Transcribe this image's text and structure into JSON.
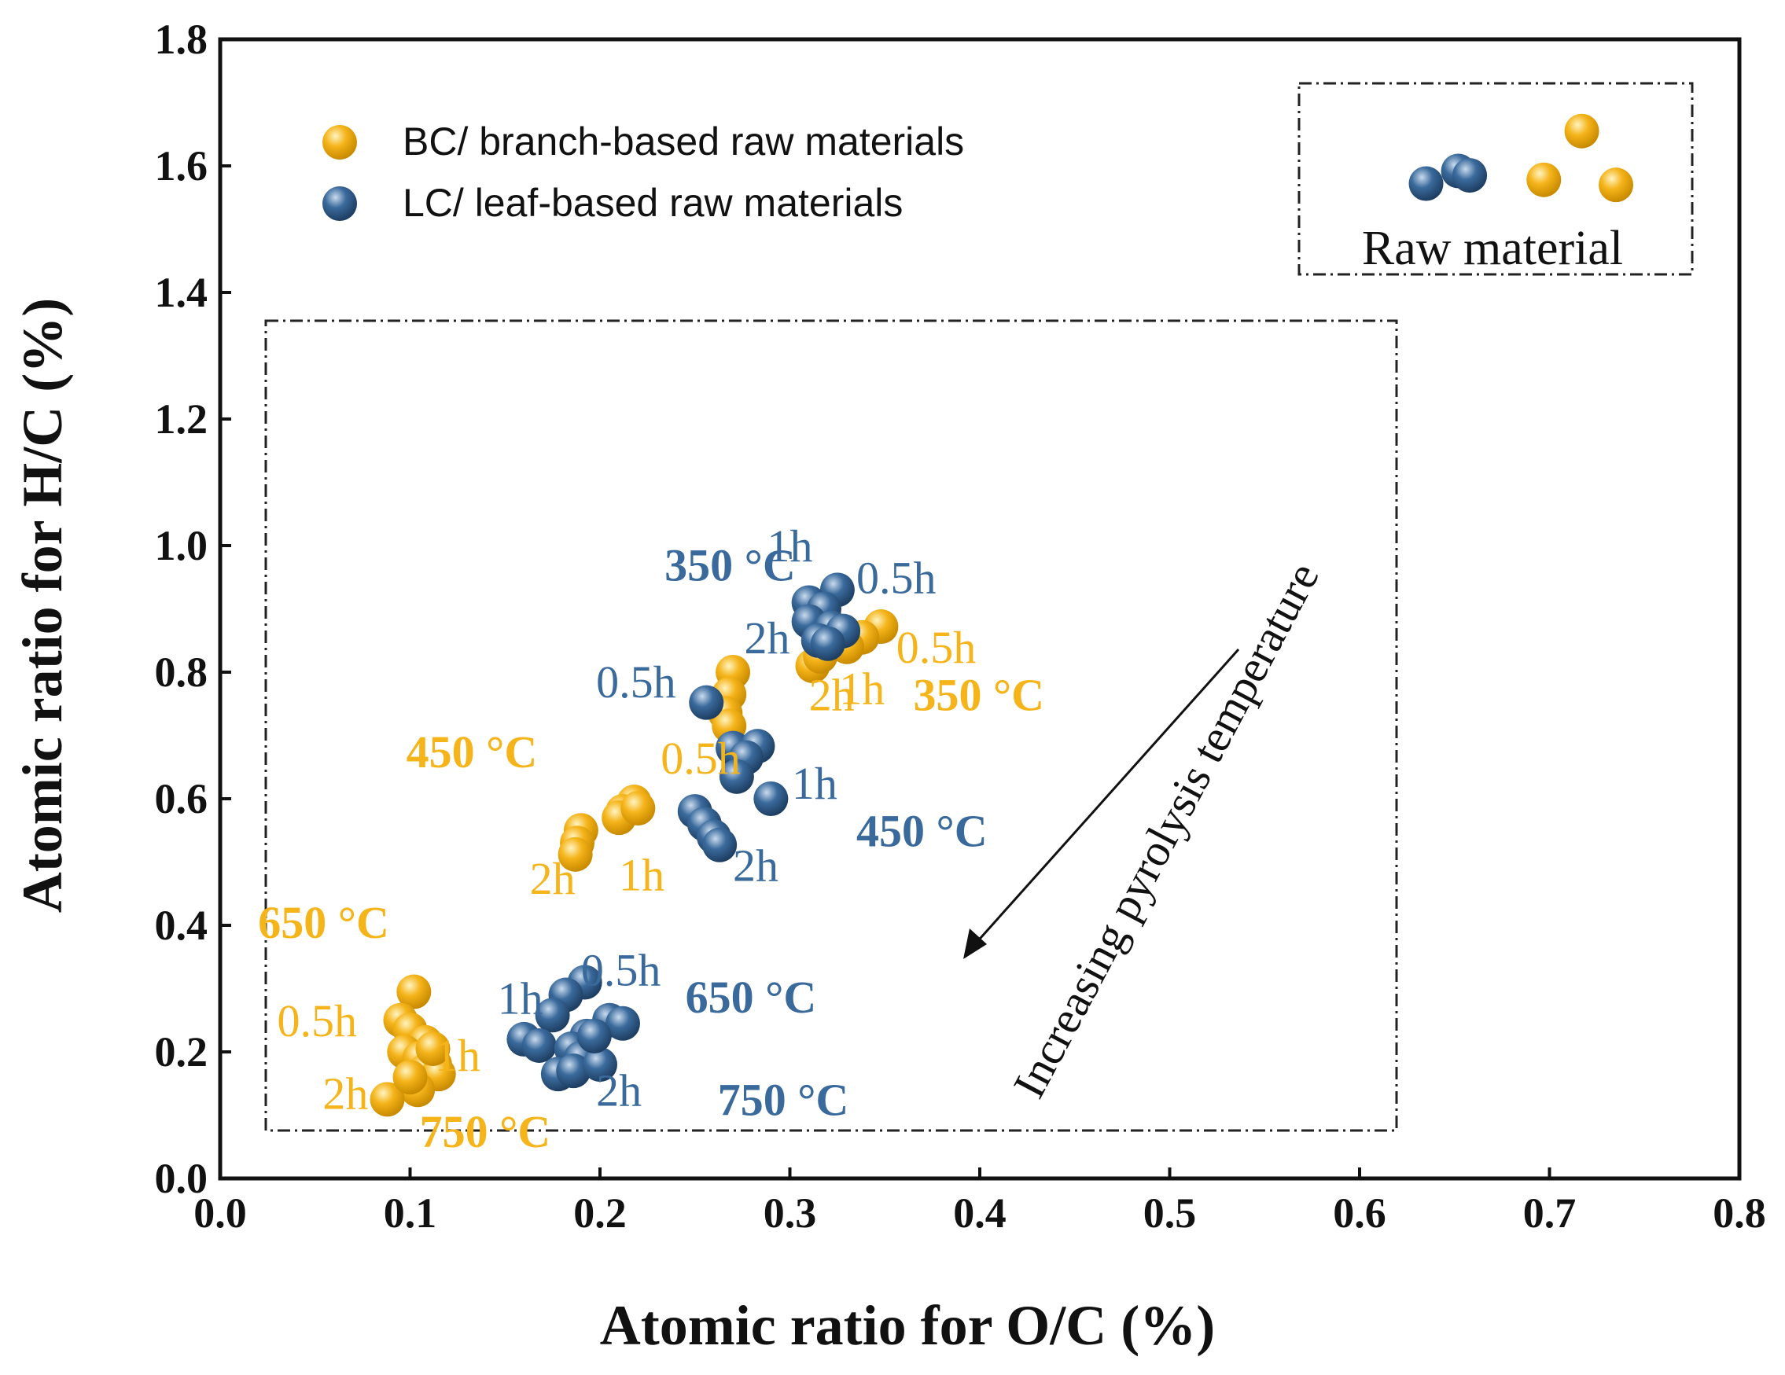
{
  "chart_data": {
    "type": "scatter",
    "title": "",
    "xlabel": "Atomic ratio for O/C (%)",
    "ylabel": "Atomic ratio for H/C (%)",
    "xlim": [
      0.0,
      0.8
    ],
    "ylim": [
      0.0,
      1.8
    ],
    "x_ticks": [
      "0.0",
      "0.1",
      "0.2",
      "0.3",
      "0.4",
      "0.5",
      "0.6",
      "0.7",
      "0.8"
    ],
    "y_ticks": [
      "0.0",
      "0.2",
      "0.4",
      "0.6",
      "0.8",
      "1.0",
      "1.2",
      "1.4",
      "1.6",
      "1.8"
    ],
    "colors": {
      "BC": "#F5B41A",
      "LC": "#3A6A9C"
    },
    "legend": [
      {
        "key": "BC",
        "label": "BC/ branch-based raw materials"
      },
      {
        "key": "LC",
        "label": "LC/ leaf-based raw materials"
      }
    ],
    "series": [
      {
        "name": "BC/ branch-based raw materials",
        "key": "BC",
        "points": [
          [
            0.717,
            1.655
          ],
          [
            0.697,
            1.578
          ],
          [
            0.735,
            1.57
          ],
          [
            0.348,
            0.872
          ],
          [
            0.338,
            0.855
          ],
          [
            0.33,
            0.84
          ],
          [
            0.312,
            0.81
          ],
          [
            0.316,
            0.825
          ],
          [
            0.27,
            0.8
          ],
          [
            0.268,
            0.765
          ],
          [
            0.266,
            0.735
          ],
          [
            0.268,
            0.715
          ],
          [
            0.218,
            0.595
          ],
          [
            0.212,
            0.58
          ],
          [
            0.21,
            0.57
          ],
          [
            0.22,
            0.585
          ],
          [
            0.19,
            0.55
          ],
          [
            0.188,
            0.53
          ],
          [
            0.187,
            0.512
          ],
          [
            0.102,
            0.295
          ],
          [
            0.095,
            0.25
          ],
          [
            0.1,
            0.235
          ],
          [
            0.108,
            0.215
          ],
          [
            0.097,
            0.2
          ],
          [
            0.105,
            0.19
          ],
          [
            0.113,
            0.18
          ],
          [
            0.108,
            0.17
          ],
          [
            0.115,
            0.165
          ],
          [
            0.104,
            0.14
          ],
          [
            0.088,
            0.125
          ],
          [
            0.1,
            0.16
          ],
          [
            0.112,
            0.205
          ]
        ]
      },
      {
        "name": "LC/ leaf-based raw materials",
        "key": "LC",
        "points": [
          [
            0.635,
            1.572
          ],
          [
            0.652,
            1.592
          ],
          [
            0.658,
            1.585
          ],
          [
            0.325,
            0.93
          ],
          [
            0.31,
            0.91
          ],
          [
            0.318,
            0.9
          ],
          [
            0.31,
            0.88
          ],
          [
            0.322,
            0.87
          ],
          [
            0.328,
            0.865
          ],
          [
            0.315,
            0.85
          ],
          [
            0.32,
            0.845
          ],
          [
            0.256,
            0.752
          ],
          [
            0.27,
            0.68
          ],
          [
            0.283,
            0.683
          ],
          [
            0.277,
            0.665
          ],
          [
            0.272,
            0.635
          ],
          [
            0.29,
            0.6
          ],
          [
            0.25,
            0.58
          ],
          [
            0.255,
            0.56
          ],
          [
            0.26,
            0.54
          ],
          [
            0.263,
            0.527
          ],
          [
            0.192,
            0.31
          ],
          [
            0.182,
            0.29
          ],
          [
            0.175,
            0.258
          ],
          [
            0.205,
            0.25
          ],
          [
            0.212,
            0.245
          ],
          [
            0.16,
            0.22
          ],
          [
            0.168,
            0.21
          ],
          [
            0.193,
            0.225
          ],
          [
            0.185,
            0.205
          ],
          [
            0.19,
            0.19
          ],
          [
            0.178,
            0.165
          ],
          [
            0.186,
            0.17
          ],
          [
            0.2,
            0.18
          ],
          [
            0.197,
            0.225
          ]
        ]
      }
    ],
    "annotations": [
      {
        "text": "350 °C",
        "x": 0.303,
        "y": 0.945,
        "group": "LC",
        "bold": true,
        "anchor": "end"
      },
      {
        "text": "1h",
        "x": 0.3,
        "y": 0.975,
        "group": "LC",
        "bold": false,
        "anchor": "middle"
      },
      {
        "text": "0.5h",
        "x": 0.335,
        "y": 0.925,
        "group": "LC",
        "bold": false,
        "anchor": "start"
      },
      {
        "text": "2h",
        "x": 0.3,
        "y": 0.83,
        "group": "LC",
        "bold": false,
        "anchor": "end"
      },
      {
        "text": "0.5h",
        "x": 0.24,
        "y": 0.76,
        "group": "LC",
        "bold": false,
        "anchor": "end"
      },
      {
        "text": "1h",
        "x": 0.301,
        "y": 0.6,
        "group": "LC",
        "bold": false,
        "anchor": "start"
      },
      {
        "text": "450 °C",
        "x": 0.335,
        "y": 0.525,
        "group": "LC",
        "bold": true,
        "anchor": "start"
      },
      {
        "text": "2h",
        "x": 0.27,
        "y": 0.47,
        "group": "LC",
        "bold": false,
        "anchor": "start"
      },
      {
        "text": "0.5h",
        "x": 0.19,
        "y": 0.305,
        "group": "LC",
        "bold": false,
        "anchor": "start"
      },
      {
        "text": "1h",
        "x": 0.158,
        "y": 0.26,
        "group": "LC",
        "bold": false,
        "anchor": "middle"
      },
      {
        "text": "650 °C",
        "x": 0.245,
        "y": 0.262,
        "group": "LC",
        "bold": true,
        "anchor": "start"
      },
      {
        "text": "2h",
        "x": 0.198,
        "y": 0.115,
        "group": "LC",
        "bold": false,
        "anchor": "start"
      },
      {
        "text": "750 °C",
        "x": 0.262,
        "y": 0.1,
        "group": "LC",
        "bold": true,
        "anchor": "start"
      },
      {
        "text": "0.5h",
        "x": 0.356,
        "y": 0.815,
        "group": "BC",
        "bold": false,
        "anchor": "start"
      },
      {
        "text": "1h",
        "x": 0.35,
        "y": 0.75,
        "group": "BC",
        "bold": false,
        "anchor": "end"
      },
      {
        "text": "2h",
        "x": 0.31,
        "y": 0.74,
        "group": "BC",
        "bold": false,
        "anchor": "start"
      },
      {
        "text": "350 °C",
        "x": 0.365,
        "y": 0.74,
        "group": "BC",
        "bold": true,
        "anchor": "start"
      },
      {
        "text": "450 °C",
        "x": 0.098,
        "y": 0.65,
        "group": "BC",
        "bold": true,
        "anchor": "start"
      },
      {
        "text": "0.5h",
        "x": 0.232,
        "y": 0.64,
        "group": "BC",
        "bold": false,
        "anchor": "start"
      },
      {
        "text": "2h",
        "x": 0.175,
        "y": 0.45,
        "group": "BC",
        "bold": false,
        "anchor": "middle"
      },
      {
        "text": "1h",
        "x": 0.222,
        "y": 0.455,
        "group": "BC",
        "bold": false,
        "anchor": "middle"
      },
      {
        "text": "650 °C",
        "x": 0.02,
        "y": 0.38,
        "group": "BC",
        "bold": true,
        "anchor": "start"
      },
      {
        "text": "0.5h",
        "x": 0.03,
        "y": 0.225,
        "group": "BC",
        "bold": false,
        "anchor": "start"
      },
      {
        "text": "1h",
        "x": 0.113,
        "y": 0.17,
        "group": "BC",
        "bold": false,
        "anchor": "start"
      },
      {
        "text": "2h",
        "x": 0.078,
        "y": 0.11,
        "group": "BC",
        "bold": false,
        "anchor": "end"
      },
      {
        "text": "750 °C",
        "x": 0.105,
        "y": 0.05,
        "group": "BC",
        "bold": true,
        "anchor": "start"
      }
    ],
    "raw_material_label": "Raw material",
    "arrow_label": "Increasing pyrolysis temperature"
  }
}
